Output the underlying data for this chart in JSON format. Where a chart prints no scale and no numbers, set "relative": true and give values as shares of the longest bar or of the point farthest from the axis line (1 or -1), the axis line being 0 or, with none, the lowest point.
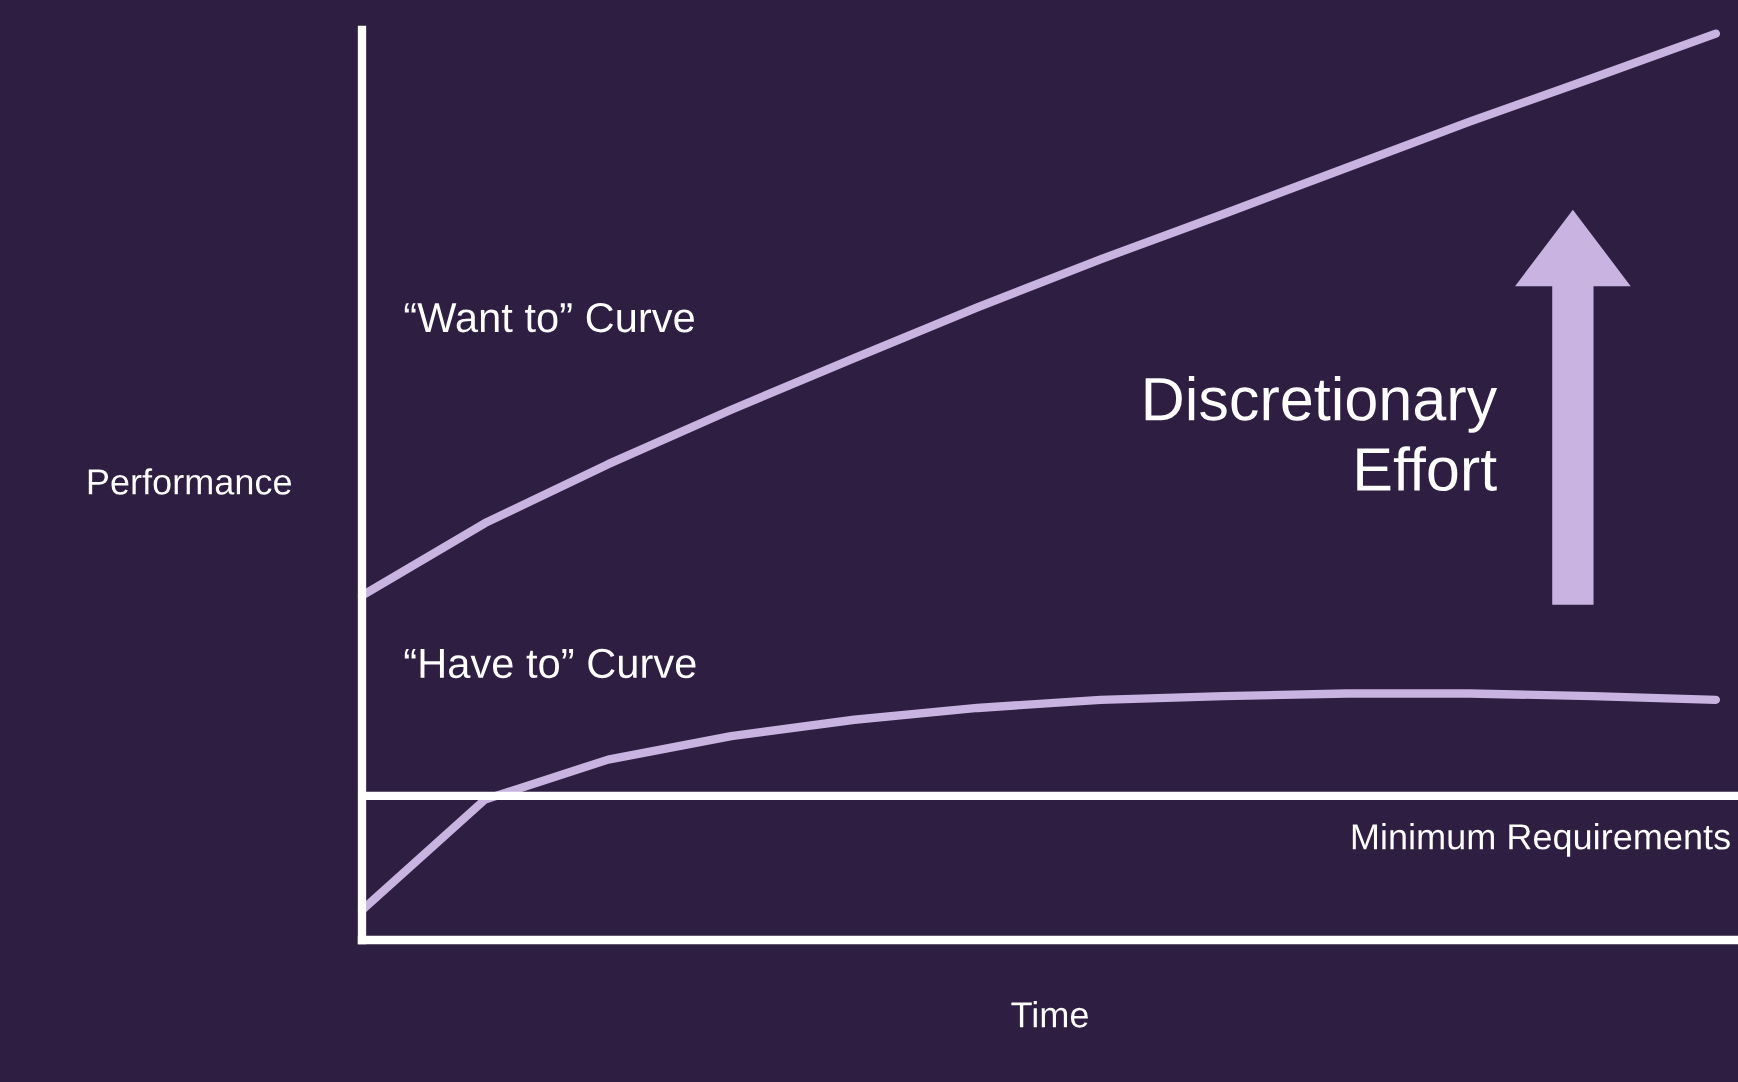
{
  "chart_data": {
    "type": "line",
    "relative": true,
    "xlabel": "Time",
    "ylabel": "Performance",
    "categories": [
      null,
      null,
      null,
      null,
      null,
      null,
      null,
      null,
      null,
      null,
      null,
      null
    ],
    "series": [
      {
        "name": "“Want to” Curve",
        "color": "#c9b3e0",
        "values": [
          0.38,
          0.46,
          0.525,
          0.585,
          0.642,
          0.698,
          0.751,
          0.801,
          0.852,
          0.903,
          0.951,
          1.0
        ]
      },
      {
        "name": "“Have to” Curve",
        "color": "#c9b3e0",
        "values": [
          0.033,
          0.155,
          0.199,
          0.225,
          0.243,
          0.256,
          0.265,
          0.269,
          0.272,
          0.272,
          0.269,
          0.265
        ]
      }
    ],
    "ref_lines": [
      {
        "axis": "y",
        "value": 0.159,
        "label": "Minimum Requirements",
        "color": "#ffffff"
      }
    ],
    "annotations": [
      "Discretionary\nEffort"
    ],
    "marker": "none",
    "line_style": "solid"
  }
}
